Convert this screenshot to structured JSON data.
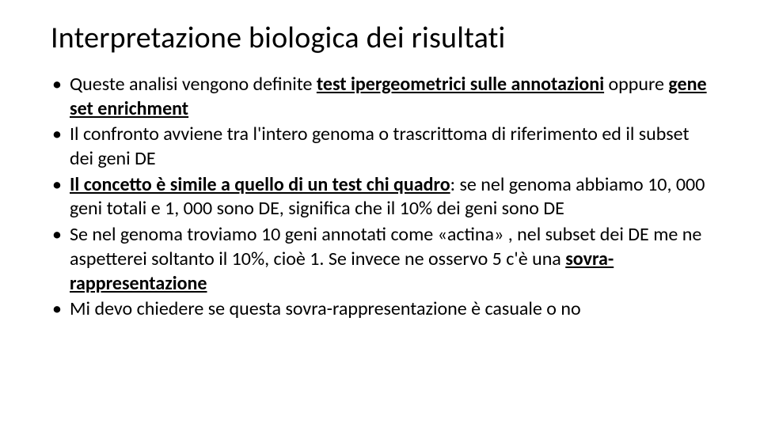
{
  "title": "Interpretazione biologica dei risultati",
  "bullets": [
    {
      "pre": "Queste analisi vengono definite ",
      "em1": "test ipergeometrici sulle annotazioni",
      "mid": " oppure ",
      "em2": "gene set enrichment",
      "post": ""
    },
    {
      "text": "Il confronto avviene tra l'intero genoma o trascrittoma di riferimento ed il subset dei geni DE"
    },
    {
      "em1": "Il concetto è simile a quello di un test chi quadro",
      "post": ": se nel genoma abbiamo 10, 000 geni totali e 1, 000 sono DE, significa che il 10% dei geni sono DE"
    },
    {
      "pre": "Se nel genoma troviamo 10 geni annotati come «actina» , nel subset dei DE me ne aspetterei soltanto il 10%, cioè 1. Se invece ne osservo 5 c'è una ",
      "em1": "sovra-rappresentazione",
      "post": ""
    },
    {
      "text": "Mi devo chiedere se questa sovra-rappresentazione è casuale o no"
    }
  ],
  "style": {
    "title_fontsize": 38,
    "body_fontsize": 24,
    "title_color": "#000000",
    "body_color": "#000000",
    "background_color": "#ffffff",
    "font_family": "Calibri",
    "underline_bold_em": true
  }
}
